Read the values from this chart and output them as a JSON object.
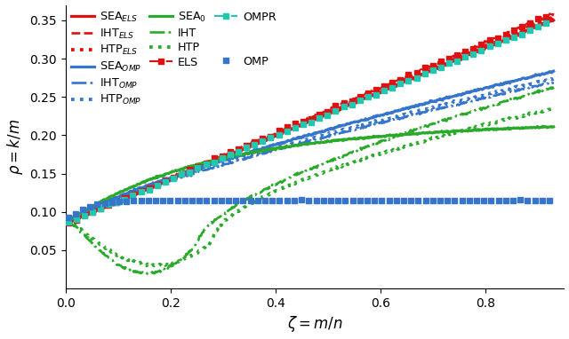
{
  "xlabel": "$\\zeta = m/n$",
  "ylabel": "$\\rho = k/m$",
  "xlim": [
    0.0,
    0.95
  ],
  "ylim": [
    0.0,
    0.37
  ],
  "xticks": [
    0.0,
    0.2,
    0.4,
    0.6,
    0.8
  ],
  "yticks": [
    0.05,
    0.1,
    0.15,
    0.2,
    0.25,
    0.3,
    0.35
  ],
  "colors": {
    "red": "#e01010",
    "blue": "#3575cc",
    "green": "#2aaa2a",
    "cyan": "#20c8b0"
  },
  "legend_rows_col1": [
    "SEA_ELS",
    "SEA_OMP",
    "SEA_0",
    "ELS",
    "OMPR",
    "OMP"
  ],
  "legend_rows_col2": [
    "IHT_ELS",
    "IHT_OMP",
    "IHT",
    "",
    "",
    ""
  ],
  "legend_rows_col3": [
    "HTP_ELS",
    "HTP_OMP",
    "HTP",
    "",
    "",
    ""
  ]
}
